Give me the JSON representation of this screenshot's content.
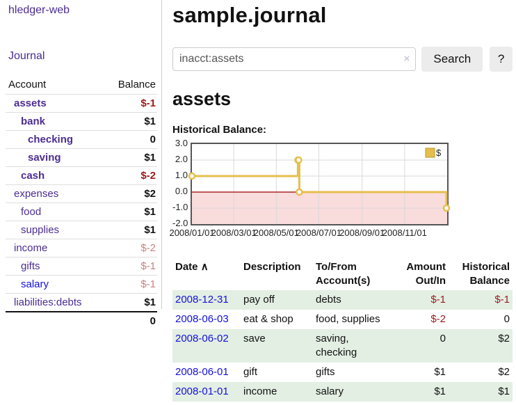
{
  "colors": {
    "purple": "#4c2c92",
    "blue": "#1410dd",
    "neg": "#9a1b1b",
    "negmuted": "#c98281",
    "green": "#e3efe3"
  },
  "app": {
    "brand": "hledger-web"
  },
  "sidebar": {
    "nav_journal": "Journal",
    "accounts": {
      "header_account": "Account",
      "header_balance": "Balance",
      "rows": [
        {
          "name": "assets",
          "balance": "$-1"
        },
        {
          "name": "bank",
          "balance": "$1"
        },
        {
          "name": "checking",
          "balance": "0"
        },
        {
          "name": "saving",
          "balance": "$1"
        },
        {
          "name": "cash",
          "balance": "$-2"
        },
        {
          "name": "expenses",
          "balance": "$2"
        },
        {
          "name": "food",
          "balance": "$1"
        },
        {
          "name": "supplies",
          "balance": "$1"
        },
        {
          "name": "income",
          "balance": "$-2"
        },
        {
          "name": "gifts",
          "balance": "$-1"
        },
        {
          "name": "salary",
          "balance": "$-1"
        },
        {
          "name": "liabilities:debts",
          "balance": "$1"
        }
      ],
      "total": "0"
    }
  },
  "main": {
    "title": "sample.journal",
    "search": {
      "value": "inacct:assets",
      "clear": "×",
      "button": "Search",
      "help": "?"
    },
    "heading": "assets"
  },
  "chart_data": {
    "type": "line",
    "title": "Historical Balance:",
    "step": "after",
    "x_domain": [
      "2008/01/01",
      "2009/01/01"
    ],
    "ylim": [
      -2,
      3
    ],
    "yticks": [
      3,
      2,
      1,
      0,
      -1,
      -2
    ],
    "xticks": [
      "2008/01/01",
      "2008/03/01",
      "2008/05/01",
      "2008/07/01",
      "2008/09/01",
      "2008/11/01"
    ],
    "series": [
      {
        "name": "$",
        "points": [
          [
            "2008-01-01",
            1
          ],
          [
            "2008-06-01",
            2
          ],
          [
            "2008-06-02",
            2
          ],
          [
            "2008-06-03",
            0
          ],
          [
            "2008-12-31",
            -1
          ]
        ]
      }
    ],
    "legend_position": "top-right",
    "grid": true,
    "colors": {
      "line": "#e5bf4d",
      "legend_border": "#b99722",
      "negative_region": "#f9dcdc",
      "zero_line": "#990000",
      "grid": "#d9d9d9"
    }
  },
  "register": {
    "sort_arrow": "∧",
    "headers": {
      "date": "Date",
      "description": "Description",
      "accounts": "To/From Account(s)",
      "amount": "Amount Out/In",
      "balance": "Historical Balance"
    },
    "rows": [
      {
        "date": "2008-12-31",
        "description": "pay off",
        "accounts": "debts",
        "amount": "$-1",
        "balance": "$-1"
      },
      {
        "date": "2008-06-03",
        "description": "eat & shop",
        "accounts": "food, supplies",
        "amount": "$-2",
        "balance": "0"
      },
      {
        "date": "2008-06-02",
        "description": "save",
        "accounts": "saving, checking",
        "amount": "0",
        "balance": "$2"
      },
      {
        "date": "2008-06-01",
        "description": "gift",
        "accounts": "gifts",
        "amount": "$1",
        "balance": "$2"
      },
      {
        "date": "2008-01-01",
        "description": "income",
        "accounts": "salary",
        "amount": "$1",
        "balance": "$1"
      }
    ]
  }
}
